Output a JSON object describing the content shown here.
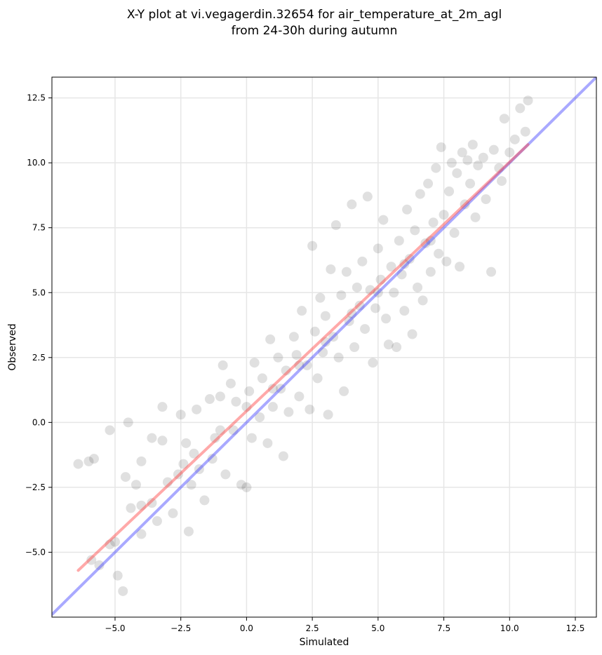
{
  "chart_data": {
    "type": "scatter",
    "title": "X-Y plot at vi.vegagerdin.32654 for air_temperature_at_2m_agl",
    "subtitle": "from 24-30h during autumn",
    "xlabel": "Simulated",
    "ylabel": "Observed",
    "xlim": [
      -7.4,
      13.3
    ],
    "ylim": [
      -7.5,
      13.3
    ],
    "xticks": [
      -5.0,
      -2.5,
      0.0,
      2.5,
      5.0,
      7.5,
      10.0,
      12.5
    ],
    "yticks": [
      -5.0,
      -2.5,
      0.0,
      2.5,
      5.0,
      7.5,
      10.0,
      12.5
    ],
    "xtick_labels": [
      "−5.0",
      "−2.5",
      "0.0",
      "2.5",
      "5.0",
      "7.5",
      "10.0",
      "12.5"
    ],
    "ytick_labels": [
      "−5.0",
      "−2.5",
      "0.0",
      "2.5",
      "5.0",
      "7.5",
      "10.0",
      "12.5"
    ],
    "grid": true,
    "point_color": "#000000",
    "identity_line": {
      "color": "#4040ff",
      "from": [
        -7.4,
        -7.4
      ],
      "to": [
        13.3,
        13.3
      ]
    },
    "fit_line": {
      "color": "#ff4040",
      "from": [
        -6.4,
        -5.7
      ],
      "to": [
        10.7,
        10.7
      ]
    },
    "points": [
      [
        -6.4,
        -1.6
      ],
      [
        -6.0,
        -1.5
      ],
      [
        -5.8,
        -1.4
      ],
      [
        -5.9,
        -5.3
      ],
      [
        -5.6,
        -5.5
      ],
      [
        -5.2,
        -4.7
      ],
      [
        -5.2,
        -0.3
      ],
      [
        -4.9,
        -5.9
      ],
      [
        -4.7,
        -6.5
      ],
      [
        -4.6,
        -2.1
      ],
      [
        -4.5,
        0.0
      ],
      [
        -4.4,
        -3.3
      ],
      [
        -4.2,
        -2.4
      ],
      [
        -4.0,
        -1.5
      ],
      [
        -4.0,
        -4.3
      ],
      [
        -3.6,
        -3.1
      ],
      [
        -3.6,
        -0.6
      ],
      [
        -3.4,
        -3.8
      ],
      [
        -3.2,
        -0.7
      ],
      [
        -3.2,
        0.6
      ],
      [
        -2.8,
        -3.5
      ],
      [
        -2.6,
        -2.0
      ],
      [
        -2.5,
        0.3
      ],
      [
        -2.4,
        -1.6
      ],
      [
        -2.3,
        -0.8
      ],
      [
        -2.2,
        -4.2
      ],
      [
        -2.1,
        -2.4
      ],
      [
        -1.9,
        0.5
      ],
      [
        -1.8,
        -1.8
      ],
      [
        -1.6,
        -3.0
      ],
      [
        -1.4,
        0.9
      ],
      [
        -1.3,
        -1.4
      ],
      [
        -1.2,
        -0.6
      ],
      [
        -1.0,
        1.0
      ],
      [
        -0.9,
        2.2
      ],
      [
        -0.8,
        -2.0
      ],
      [
        -0.6,
        1.5
      ],
      [
        -0.5,
        -0.3
      ],
      [
        -0.4,
        0.8
      ],
      [
        -0.2,
        -2.4
      ],
      [
        0.0,
        -2.5
      ],
      [
        0.1,
        1.2
      ],
      [
        0.2,
        -0.6
      ],
      [
        0.3,
        2.3
      ],
      [
        0.5,
        0.2
      ],
      [
        0.6,
        1.7
      ],
      [
        0.8,
        -0.8
      ],
      [
        0.9,
        3.2
      ],
      [
        1.0,
        0.6
      ],
      [
        1.2,
        2.5
      ],
      [
        1.3,
        1.3
      ],
      [
        1.4,
        -1.3
      ],
      [
        1.5,
        2.0
      ],
      [
        1.6,
        0.4
      ],
      [
        1.8,
        3.3
      ],
      [
        1.9,
        2.6
      ],
      [
        2.0,
        1.0
      ],
      [
        2.1,
        4.3
      ],
      [
        2.3,
        2.2
      ],
      [
        2.4,
        0.5
      ],
      [
        2.5,
        6.8
      ],
      [
        2.6,
        3.5
      ],
      [
        2.7,
        1.7
      ],
      [
        2.8,
        4.8
      ],
      [
        2.9,
        2.7
      ],
      [
        3.0,
        4.1
      ],
      [
        3.1,
        0.3
      ],
      [
        3.2,
        5.9
      ],
      [
        3.3,
        3.3
      ],
      [
        3.4,
        7.6
      ],
      [
        3.5,
        2.5
      ],
      [
        3.6,
        4.9
      ],
      [
        3.7,
        1.2
      ],
      [
        3.8,
        5.8
      ],
      [
        3.9,
        3.9
      ],
      [
        4.0,
        8.4
      ],
      [
        4.1,
        2.9
      ],
      [
        4.2,
        5.2
      ],
      [
        4.3,
        4.5
      ],
      [
        4.4,
        6.2
      ],
      [
        4.5,
        3.6
      ],
      [
        4.6,
        8.7
      ],
      [
        4.7,
        5.1
      ],
      [
        4.8,
        2.3
      ],
      [
        4.9,
        4.4
      ],
      [
        5.0,
        6.7
      ],
      [
        5.1,
        5.5
      ],
      [
        5.2,
        7.8
      ],
      [
        5.3,
        4.0
      ],
      [
        5.4,
        3.0
      ],
      [
        5.5,
        6.0
      ],
      [
        5.6,
        5.0
      ],
      [
        5.7,
        2.9
      ],
      [
        5.8,
        7.0
      ],
      [
        5.9,
        5.7
      ],
      [
        6.0,
        4.3
      ],
      [
        6.1,
        8.2
      ],
      [
        6.2,
        6.3
      ],
      [
        6.3,
        3.4
      ],
      [
        6.4,
        7.4
      ],
      [
        6.5,
        5.2
      ],
      [
        6.6,
        8.8
      ],
      [
        6.7,
        4.7
      ],
      [
        6.8,
        6.9
      ],
      [
        6.9,
        9.2
      ],
      [
        7.0,
        5.8
      ],
      [
        7.1,
        7.7
      ],
      [
        7.2,
        9.8
      ],
      [
        7.3,
        6.5
      ],
      [
        7.4,
        10.6
      ],
      [
        7.5,
        8.0
      ],
      [
        7.6,
        6.2
      ],
      [
        7.7,
        8.9
      ],
      [
        7.8,
        10.0
      ],
      [
        7.9,
        7.3
      ],
      [
        8.0,
        9.6
      ],
      [
        8.1,
        6.0
      ],
      [
        8.2,
        10.4
      ],
      [
        8.3,
        8.4
      ],
      [
        8.5,
        9.2
      ],
      [
        8.6,
        10.7
      ],
      [
        8.7,
        7.9
      ],
      [
        8.8,
        9.9
      ],
      [
        9.0,
        10.2
      ],
      [
        9.1,
        8.6
      ],
      [
        9.3,
        5.8
      ],
      [
        9.4,
        10.5
      ],
      [
        9.6,
        9.8
      ],
      [
        9.8,
        11.7
      ],
      [
        10.0,
        10.4
      ],
      [
        10.2,
        10.9
      ],
      [
        10.4,
        12.1
      ],
      [
        10.6,
        11.2
      ],
      [
        10.7,
        12.4
      ],
      [
        9.7,
        9.3
      ],
      [
        8.4,
        10.1
      ],
      [
        7.0,
        7.0
      ],
      [
        6.0,
        6.1
      ],
      [
        5.0,
        5.0
      ],
      [
        4.0,
        4.2
      ],
      [
        3.0,
        3.1
      ],
      [
        2.0,
        2.2
      ],
      [
        1.0,
        1.3
      ],
      [
        0.0,
        0.6
      ],
      [
        -1.0,
        -0.3
      ],
      [
        -2.0,
        -1.2
      ],
      [
        -3.0,
        -2.3
      ],
      [
        -4.0,
        -3.2
      ],
      [
        -5.0,
        -4.6
      ]
    ]
  }
}
